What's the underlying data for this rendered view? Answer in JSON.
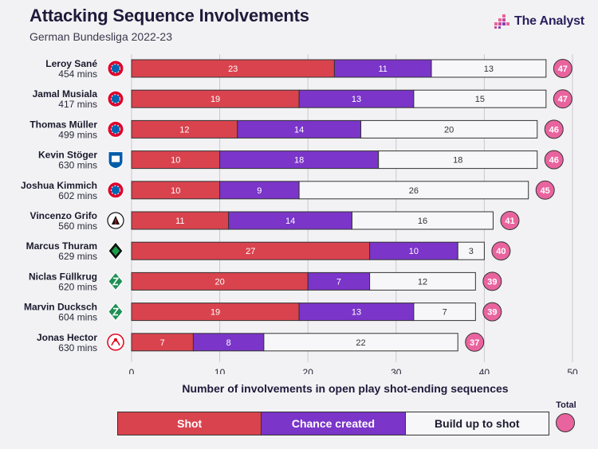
{
  "header": {
    "title": "Attacking Sequence Involvements",
    "subtitle": "German Bundesliga 2022-23",
    "brand": "The Analyst"
  },
  "colors": {
    "shot": "#d9434e",
    "chance": "#7b35c9",
    "build": "#f7f7f9",
    "total": "#e9649e"
  },
  "legend": {
    "shot": "Shot",
    "chance": "Chance created",
    "build": "Build up to shot",
    "total": "Total"
  },
  "chart_data": {
    "type": "bar",
    "orientation": "horizontal",
    "stacked": true,
    "title": "Attacking Sequence Involvements",
    "subtitle": "German Bundesliga 2022-23",
    "xlabel": "Number of involvements in open play shot-ending sequences",
    "ylabel": "",
    "xlim": [
      0,
      50
    ],
    "xticks": [
      0,
      10,
      20,
      30,
      40,
      50
    ],
    "grid": true,
    "categories": [
      "Leroy Sané",
      "Jamal Musiala",
      "Thomas Müller",
      "Kevin Stöger",
      "Joshua Kimmich",
      "Vincenzo Grifo",
      "Marcus Thuram",
      "Niclas Füllkrug",
      "Marvin Ducksch",
      "Jonas Hector"
    ],
    "minutes": [
      "454 mins",
      "417 mins",
      "499 mins",
      "630 mins",
      "602 mins",
      "560 mins",
      "629 mins",
      "620 mins",
      "604 mins",
      "630 mins"
    ],
    "clubs": [
      "bayern-badge-icon",
      "bayern-badge-icon",
      "bayern-badge-icon",
      "bochum-badge-icon",
      "bayern-badge-icon",
      "freiburg-badge-icon",
      "gladbach-badge-icon",
      "bremen-badge-icon",
      "bremen-badge-icon",
      "koln-badge-icon"
    ],
    "series": [
      {
        "name": "Shot",
        "values": [
          23,
          19,
          12,
          10,
          10,
          11,
          27,
          20,
          19,
          7
        ]
      },
      {
        "name": "Chance created",
        "values": [
          11,
          13,
          14,
          18,
          9,
          14,
          10,
          7,
          13,
          8
        ]
      },
      {
        "name": "Build up to shot",
        "values": [
          13,
          15,
          20,
          18,
          26,
          16,
          3,
          12,
          7,
          22
        ]
      }
    ],
    "totals": [
      47,
      47,
      46,
      46,
      45,
      41,
      40,
      39,
      39,
      37
    ]
  }
}
